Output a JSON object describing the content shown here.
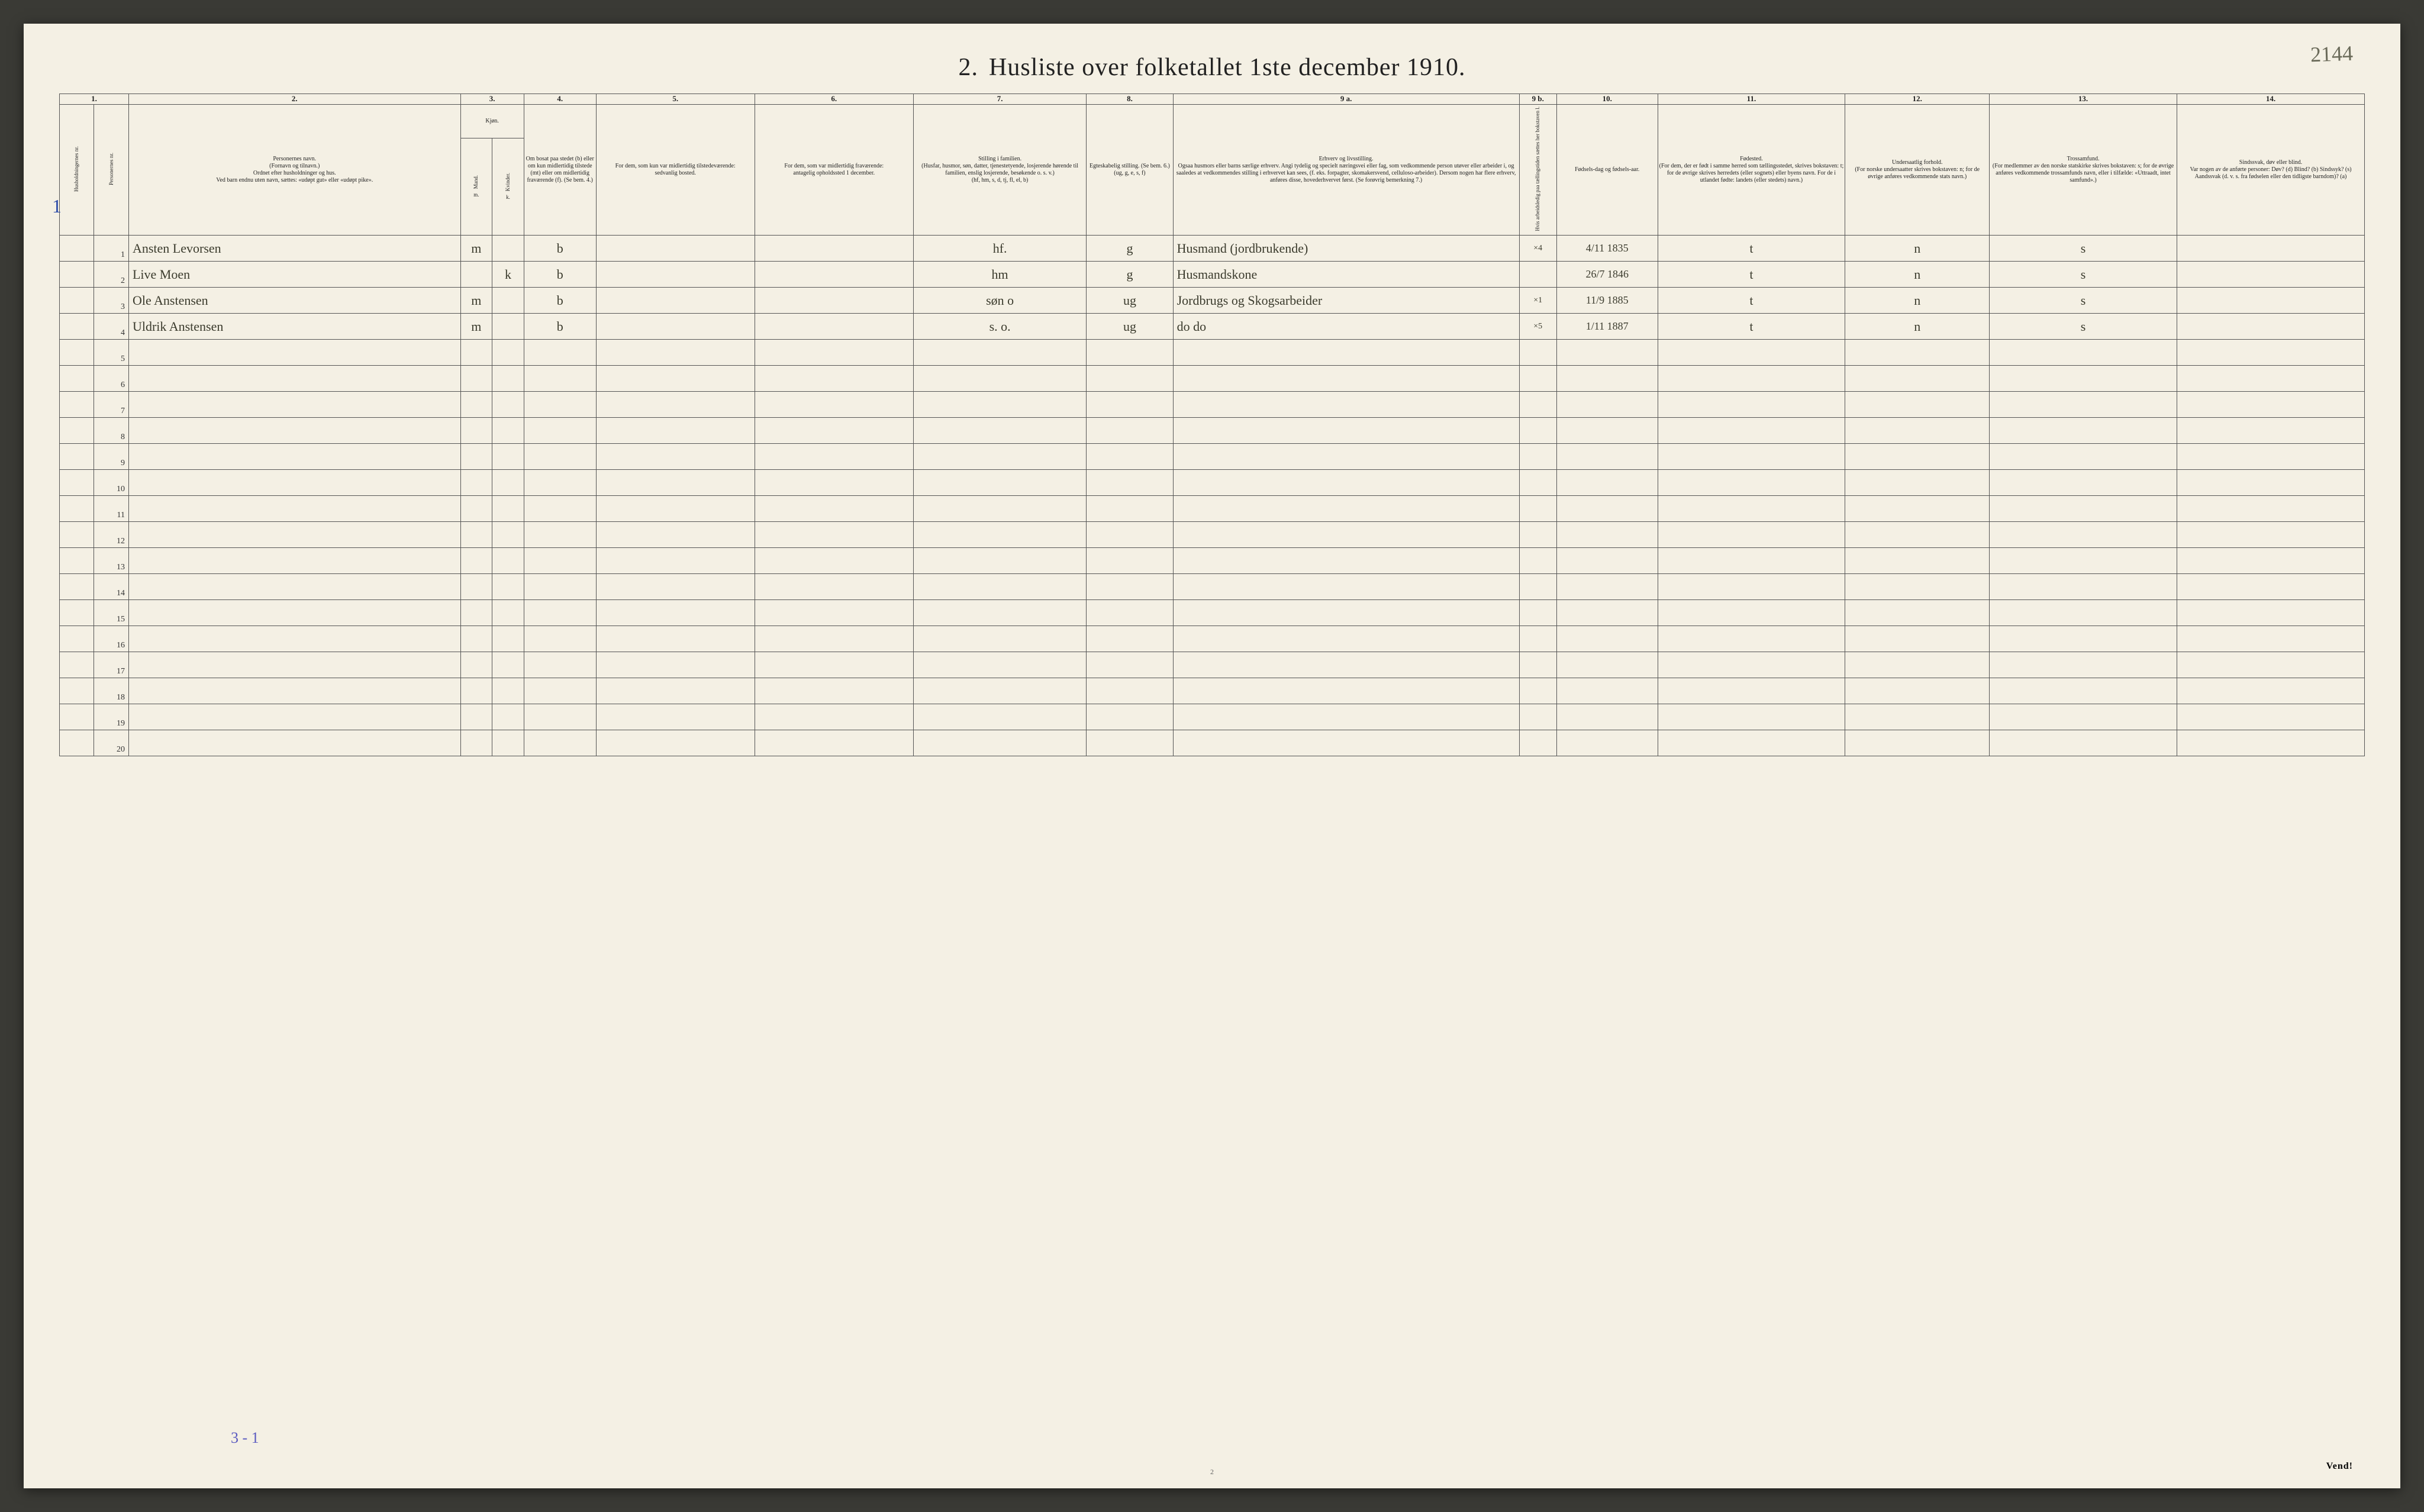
{
  "page_number_handwritten": "2144",
  "title_num": "2.",
  "title_text": "Husliste over folketallet 1ste december 1910.",
  "col_numbers": [
    "1.",
    "2.",
    "3.",
    "4.",
    "5.",
    "6.",
    "7.",
    "8.",
    "9 a.",
    "9 b.",
    "10.",
    "11.",
    "12.",
    "13.",
    "14."
  ],
  "headers": {
    "c1": "Husholdningernes nr.",
    "c1b": "Personernes nr.",
    "c2": "Personernes navn.\n(Fornavn og tilnavn.)\nOrdnet efter husholdninger og hus.\nVed barn endnu uten navn, sættes: «udøpt gut» eller «udøpt pike».",
    "c3": "Kjøn.",
    "c3m": "Mand.",
    "c3k": "Kvinder.",
    "c4": "Om bosat paa stedet (b) eller om kun midlertidig tilstede (mt) eller om midlertidig fraværende (f). (Se bem. 4.)",
    "c5": "For dem, som kun var midlertidig tilstedeværende:\nsedvanlig bosted.",
    "c6": "For dem, som var midlertidig fraværende:\nantagelig opholdssted 1 december.",
    "c7": "Stilling i familien.\n(Husfar, husmor, søn, datter, tjenestetyende, losjerende hørende til familien, enslig losjerende, besøkende o. s. v.)\n(hf, hm, s, d, tj, fl, el, b)",
    "c8": "Egteskabelig stilling. (Se bem. 6.) (ug, g, e, s, f)",
    "c9a": "Erhverv og livsstilling.\nOgsaa husmors eller barns særlige erhverv. Angi tydelig og specielt næringsvei eller fag, som vedkommende person utøver eller arbeider i, og saaledes at vedkommendes stilling i erhvervet kan sees, (f. eks. forpagter, skomakersvend, celluloso-arbeider). Dersom nogen har flere erhverv, anføres disse, hovederhvervet først. (Se forøvrig bemerkning 7.)",
    "c9b": "Hvis arbeidsledig paa tællingstiden sættes her bokstaven l.",
    "c10": "Fødsels-dag og fødsels-aar.",
    "c11": "Fødested.\n(For dem, der er født i samme herred som tællingsstedet, skrives bokstaven: t; for de øvrige skrives herredets (eller sognets) eller byens navn. For de i utlandet fødte: landets (eller stedets) navn.)",
    "c12": "Undersaatlig forhold.\n(For norske undersaatter skrives bokstaven: n; for de øvrige anføres vedkommende stats navn.)",
    "c13": "Trossamfund.\n(For medlemmer av den norske statskirke skrives bokstaven: s; for de øvrige anføres vedkommende trossamfunds navn, eller i tilfælde: «Uttraadt, intet samfund».)",
    "c14": "Sindssvak, døv eller blind.\nVar nogen av de anførte personer: Døv? (d) Blind? (b) Sindssyk? (s) Aandssvak (d. v. s. fra fødselen eller den tidligste barndom)? (a)"
  },
  "rows": [
    {
      "n": "1",
      "name": "Ansten Levorsen",
      "m": "m",
      "k": "",
      "b": "b",
      "c5": "",
      "c6": "",
      "c7": "hf.",
      "c8": "g",
      "c9a": "Husmand (jordbrukende)",
      "c9b": "×4",
      "c10": "4/11 1835",
      "c11": "t",
      "c12": "n",
      "c13": "s",
      "c14": ""
    },
    {
      "n": "2",
      "name": "Live Moen",
      "m": "",
      "k": "k",
      "b": "b",
      "c5": "",
      "c6": "",
      "c7": "hm",
      "c8": "g",
      "c9a": "Husmandskone",
      "c9b": "",
      "c10": "26/7 1846",
      "c11": "t",
      "c12": "n",
      "c13": "s",
      "c14": ""
    },
    {
      "n": "3",
      "name": "Ole Anstensen",
      "m": "m",
      "k": "",
      "b": "b",
      "c5": "",
      "c6": "",
      "c7": "søn   o",
      "c8": "ug",
      "c9a": "Jordbrugs og Skogsarbeider",
      "c9b": "×1",
      "c10": "11/9 1885",
      "c11": "t",
      "c12": "n",
      "c13": "s",
      "c14": ""
    },
    {
      "n": "4",
      "name": "Uldrik Anstensen",
      "m": "m",
      "k": "",
      "b": "b",
      "c5": "",
      "c6": "",
      "c7": "s.   o.",
      "c8": "ug",
      "c9a": "do   do",
      "c9b": "×5",
      "c10": "1/11 1887",
      "c11": "t",
      "c12": "n",
      "c13": "s",
      "c14": ""
    }
  ],
  "empty_rows_from": 5,
  "empty_rows_to": 20,
  "hand_mark_left": "1",
  "hand_mark_bottom": "3 - 1",
  "vend_text": "Vend!",
  "footer_pgnum": "2",
  "colwidths": {
    "c1": 24,
    "c1b": 24,
    "c2": 230,
    "c3m": 22,
    "c3k": 22,
    "c4": 50,
    "c5": 110,
    "c6": 110,
    "c7": 120,
    "c8": 60,
    "c9a": 240,
    "c9b": 26,
    "c10": 70,
    "c11": 130,
    "c12": 100,
    "c13": 130,
    "c14": 130
  },
  "colors": {
    "paper": "#f4f0e4",
    "ink": "#222222",
    "handwriting": "#3b3b2d",
    "pencil_blue": "#5a5ac0",
    "border": "#555555",
    "background": "#3a3a35"
  }
}
